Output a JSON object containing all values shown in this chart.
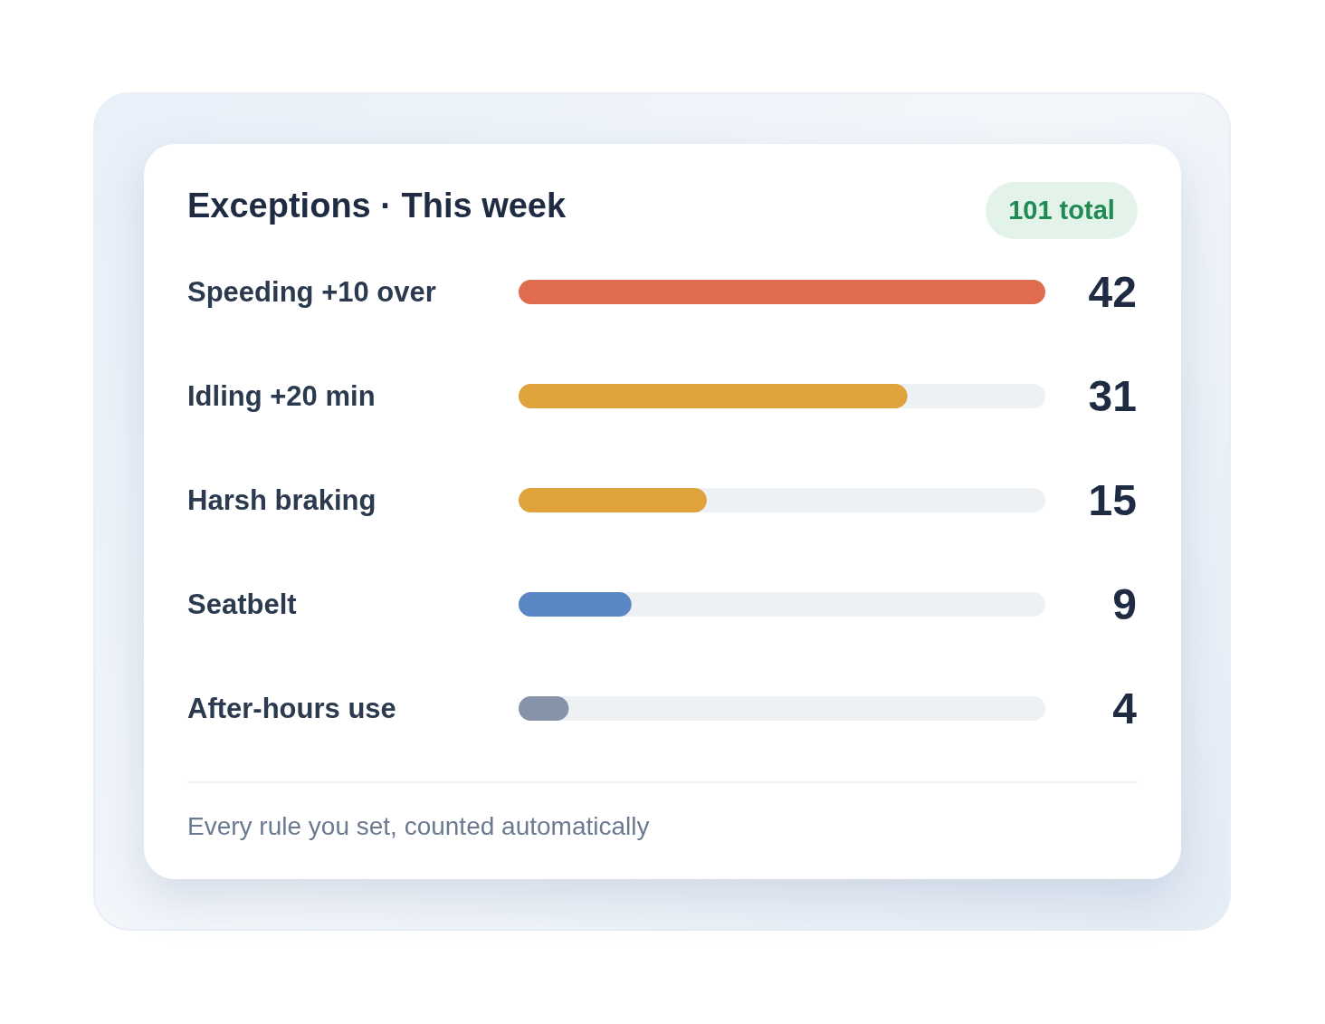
{
  "chart_data": {
    "type": "bar",
    "orientation": "horizontal",
    "title": "Exceptions · This week",
    "categories": [
      "Speeding +10 over",
      "Idling +20 min",
      "Harsh braking",
      "Seatbelt",
      "After-hours use"
    ],
    "values": [
      42,
      31,
      15,
      9,
      4
    ],
    "colors": [
      "#e06c4f",
      "#e0a23a",
      "#e0a23a",
      "#5b86c4",
      "#8793a8"
    ],
    "data_labels": true,
    "grid": false,
    "legend": false,
    "tick_labels": "y",
    "annotations": [
      "101 total",
      "Every rule you set, counted automatically"
    ]
  }
}
